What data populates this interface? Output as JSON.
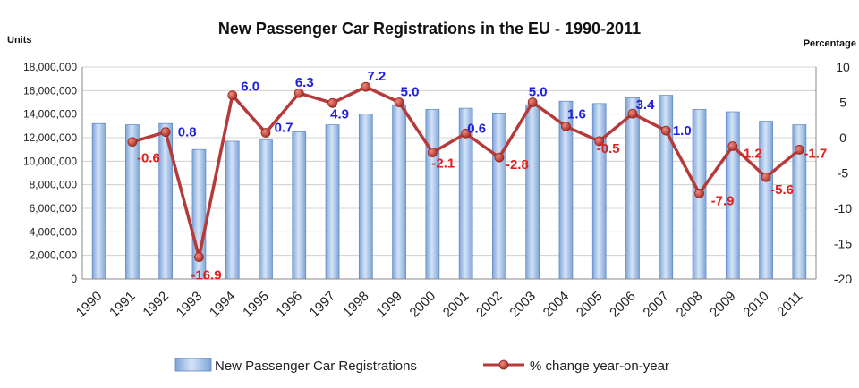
{
  "chart_data": {
    "type": "bar+line",
    "title": "New Passenger Car Registrations in the EU - 1990-2011",
    "y_left_label": "Units",
    "y_right_label": "Percentage",
    "categories": [
      "1990",
      "1991",
      "1992",
      "1993",
      "1994",
      "1995",
      "1996",
      "1997",
      "1998",
      "1999",
      "2000",
      "2001",
      "2002",
      "2003",
      "2004",
      "2005",
      "2006",
      "2007",
      "2008",
      "2009",
      "2010",
      "2011"
    ],
    "y_left_ticks": [
      "0",
      "2,000,000",
      "4,000,000",
      "6,000,000",
      "8,000,000",
      "10,000,000",
      "12,000,000",
      "14,000,000",
      "16,000,000",
      "18,000,000"
    ],
    "y_right_ticks": [
      "-20",
      "-15",
      "-10",
      "-5",
      "0",
      "5",
      "10"
    ],
    "y_left_range": [
      0,
      18000000
    ],
    "y_right_range": [
      -20,
      10
    ],
    "series": [
      {
        "name": "New Passenger Car Registrations",
        "kind": "bar",
        "values": [
          13200000,
          13100000,
          13200000,
          11000000,
          11700000,
          11800000,
          12500000,
          13100000,
          14000000,
          14800000,
          14400000,
          14500000,
          14100000,
          14800000,
          15100000,
          14900000,
          15400000,
          15600000,
          14400000,
          14200000,
          13400000,
          13100000
        ]
      },
      {
        "name": "% change year-on-year",
        "kind": "line",
        "values": [
          null,
          -0.6,
          0.8,
          -16.9,
          6.0,
          0.7,
          6.3,
          4.9,
          7.2,
          5.0,
          -2.1,
          0.6,
          -2.8,
          5.0,
          1.6,
          -0.5,
          3.4,
          1.0,
          -7.9,
          -1.2,
          -5.6,
          -1.7
        ],
        "labels": [
          "",
          "-0.6",
          "0.8",
          "-16.9",
          "6.0",
          "0.7",
          "6.3",
          "4.9",
          "7.2",
          "5.0",
          "-2.1",
          "0.6",
          "-2.8",
          "5.0",
          "1.6",
          "-0.5",
          "3.4",
          "1.0",
          "-7.9",
          "-1.2",
          "-5.6",
          "-1.7"
        ]
      }
    ],
    "label_colors": {
      "positive": "#1f1fe0",
      "negative": "#e0201c"
    },
    "colors": {
      "bar": "#9dbde6",
      "bar_edge": "#5f86c0",
      "line": "#b53a3a",
      "marker": "#c0392b"
    },
    "legend_position": "bottom"
  }
}
